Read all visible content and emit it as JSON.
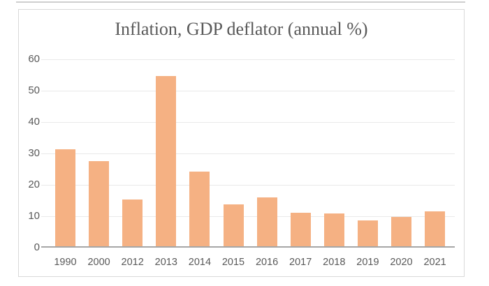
{
  "chart_data": {
    "type": "bar",
    "title": "Inflation, GDP deflator (annual %)",
    "categories": [
      "1990",
      "2000",
      "2012",
      "2013",
      "2014",
      "2015",
      "2016",
      "2017",
      "2018",
      "2019",
      "2020",
      "2021"
    ],
    "values": [
      31.0,
      27.1,
      15.0,
      54.2,
      23.8,
      13.3,
      15.6,
      10.7,
      10.4,
      8.3,
      9.3,
      11.2
    ],
    "xlabel": "",
    "ylabel": "",
    "ylim": [
      0,
      60
    ],
    "yticks": [
      0,
      10,
      20,
      30,
      40,
      50,
      60
    ],
    "grid": true,
    "legend": false,
    "colors": {
      "bar": "#F5B183",
      "text": "#595959",
      "gridline": "#E9E9E9",
      "axis_line": "#A6A6A6",
      "frame_border": "#D9D9D9",
      "background": "#FFFFFF"
    }
  }
}
